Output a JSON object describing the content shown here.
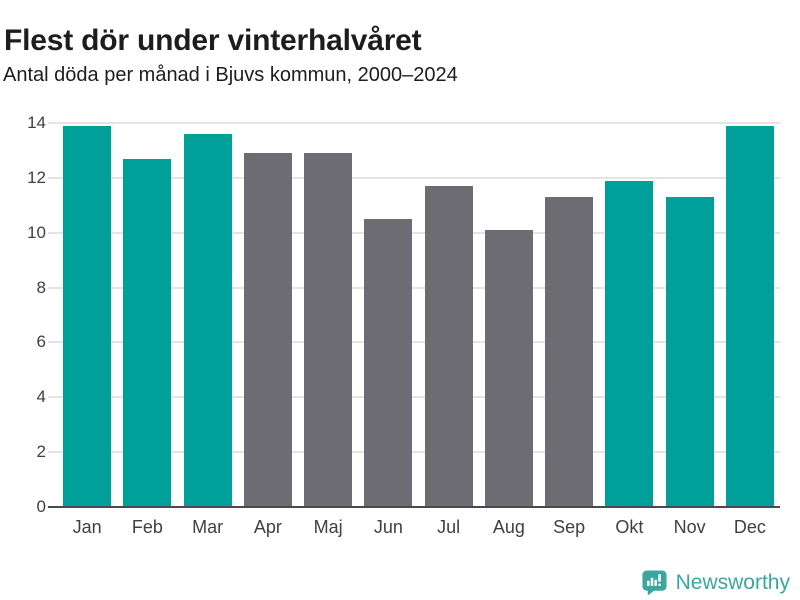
{
  "header": {
    "title": "Flest dör under vinterhalvåret",
    "subtitle": "Antal döda per månad i Bjuvs kommun, 2000–2024"
  },
  "chart_data": {
    "type": "bar",
    "title": "Flest dör under vinterhalvåret",
    "subtitle": "Antal döda per månad i Bjuvs kommun, 2000–2024",
    "categories": [
      "Jan",
      "Feb",
      "Mar",
      "Apr",
      "Maj",
      "Jun",
      "Jul",
      "Aug",
      "Sep",
      "Okt",
      "Nov",
      "Dec"
    ],
    "values": [
      13.9,
      12.7,
      13.6,
      12.9,
      12.9,
      10.5,
      11.7,
      10.1,
      11.3,
      11.9,
      11.3,
      13.9
    ],
    "bar_colors": [
      "#00a09a",
      "#00a09a",
      "#00a09a",
      "#6e6c73",
      "#6e6c73",
      "#6e6c73",
      "#6e6c73",
      "#6e6c73",
      "#6e6c73",
      "#00a09a",
      "#00a09a",
      "#00a09a"
    ],
    "highlight_color": "#00a09a",
    "default_color": "#6e6c73",
    "xlabel": "",
    "ylabel": "",
    "ylim": [
      0,
      14
    ],
    "yticks": [
      0,
      2,
      4,
      6,
      8,
      10,
      12,
      14
    ],
    "grid": true,
    "gridline_color": "#e4e4e4",
    "axis_line_color": "#4a4a4a",
    "legend": "none"
  },
  "footer": {
    "brand": "Newsworthy",
    "brand_color": "#3aa79f",
    "logo_icon": "bar-chart-speech-bubble"
  }
}
